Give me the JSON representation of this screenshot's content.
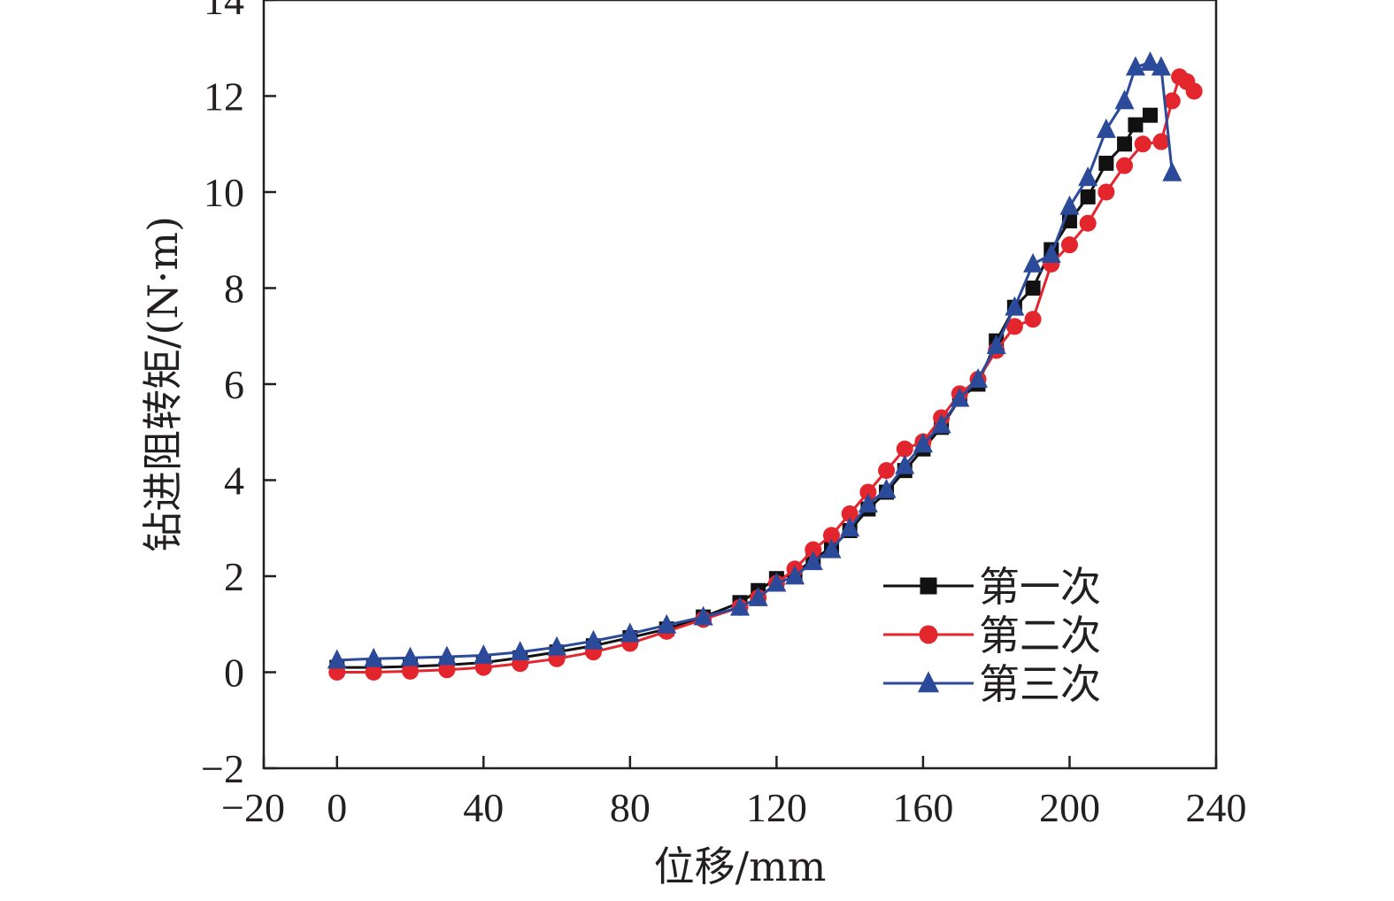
{
  "chart_data": {
    "type": "scatter",
    "title": "",
    "xlabel": "位移/mm",
    "ylabel": "钻进阻转矩/(N·m)",
    "xlim": [
      -20,
      240
    ],
    "ylim": [
      -2,
      14
    ],
    "xticks": [
      -20,
      0,
      40,
      80,
      120,
      160,
      200,
      240
    ],
    "yticks": [
      -2,
      0,
      2,
      4,
      6,
      8,
      10,
      12,
      14
    ],
    "xtick_labels": [
      "−20",
      "0",
      "40",
      "80",
      "120",
      "160",
      "200",
      "240"
    ],
    "ytick_labels": [
      "−2",
      "0",
      "2",
      "4",
      "6",
      "8",
      "10",
      "12",
      "14"
    ],
    "grid": false,
    "legend_position": "lower-right",
    "series": [
      {
        "name": "第一次",
        "color": "#111111",
        "marker": "square",
        "x": [
          0,
          10,
          20,
          30,
          40,
          50,
          60,
          70,
          80,
          90,
          100,
          110,
          115,
          120,
          125,
          130,
          135,
          140,
          145,
          150,
          155,
          160,
          165,
          170,
          175,
          180,
          185,
          190,
          195,
          200,
          205,
          210,
          215,
          218,
          222
        ],
        "y": [
          0.1,
          0.1,
          0.12,
          0.15,
          0.2,
          0.3,
          0.42,
          0.55,
          0.72,
          0.9,
          1.15,
          1.45,
          1.7,
          1.95,
          2.05,
          2.35,
          2.6,
          2.95,
          3.4,
          3.75,
          4.2,
          4.65,
          5.1,
          5.7,
          6.0,
          6.9,
          7.6,
          8.0,
          8.8,
          9.4,
          9.9,
          10.6,
          11.0,
          11.4,
          11.6
        ]
      },
      {
        "name": "第二次",
        "color": "#e3262d",
        "marker": "circle",
        "x": [
          0,
          10,
          20,
          30,
          40,
          50,
          60,
          70,
          80,
          90,
          100,
          110,
          115,
          120,
          125,
          130,
          135,
          140,
          145,
          150,
          155,
          160,
          165,
          170,
          175,
          180,
          185,
          190,
          195,
          200,
          205,
          210,
          215,
          220,
          225,
          228,
          230,
          232,
          234
        ],
        "y": [
          0.0,
          0.0,
          0.02,
          0.05,
          0.1,
          0.18,
          0.28,
          0.42,
          0.6,
          0.85,
          1.1,
          1.35,
          1.55,
          1.85,
          2.15,
          2.55,
          2.85,
          3.3,
          3.75,
          4.2,
          4.65,
          4.8,
          5.3,
          5.8,
          6.1,
          6.7,
          7.2,
          7.35,
          8.5,
          8.9,
          9.35,
          10.0,
          10.55,
          11.0,
          11.05,
          11.9,
          12.4,
          12.3,
          12.1
        ]
      },
      {
        "name": "第三次",
        "color": "#2c4a9a",
        "marker": "triangle",
        "x": [
          0,
          10,
          20,
          30,
          40,
          50,
          60,
          70,
          80,
          90,
          100,
          110,
          115,
          120,
          125,
          130,
          135,
          140,
          145,
          150,
          155,
          160,
          165,
          170,
          175,
          180,
          185,
          190,
          195,
          200,
          205,
          210,
          215,
          218,
          222,
          225,
          228
        ],
        "y": [
          0.25,
          0.28,
          0.3,
          0.32,
          0.35,
          0.42,
          0.52,
          0.65,
          0.8,
          0.98,
          1.15,
          1.35,
          1.55,
          1.85,
          2.0,
          2.3,
          2.55,
          3.0,
          3.5,
          3.8,
          4.3,
          4.75,
          5.15,
          5.7,
          6.1,
          6.8,
          7.6,
          8.5,
          8.7,
          9.7,
          10.3,
          11.3,
          11.9,
          12.6,
          12.7,
          12.6,
          10.4
        ]
      }
    ]
  }
}
